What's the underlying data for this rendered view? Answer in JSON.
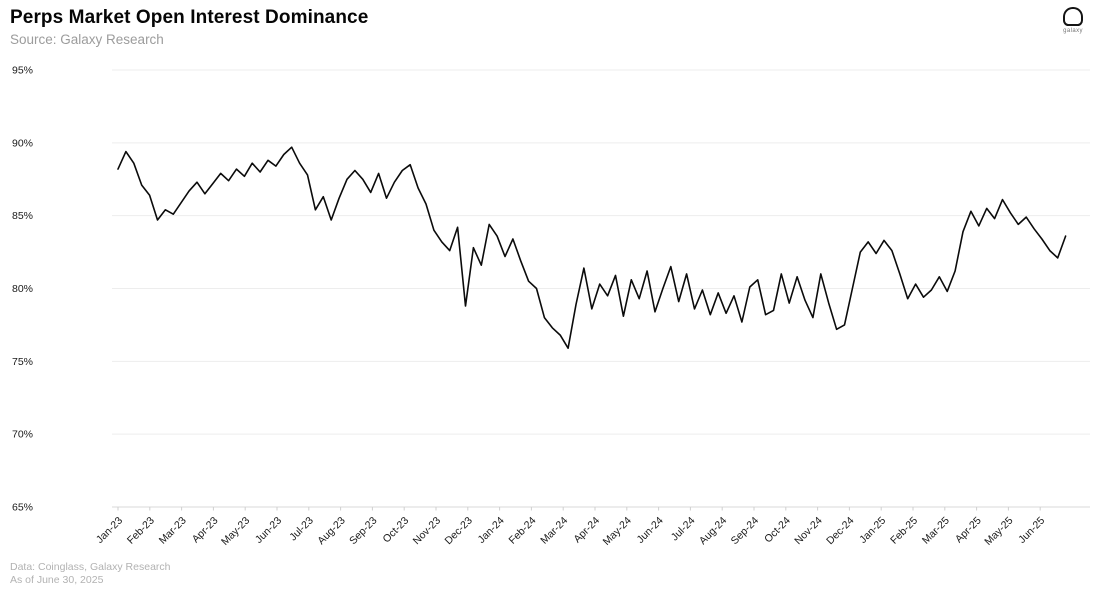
{
  "header": {
    "title": "Perps Market Open Interest Dominance",
    "source": "Source: Galaxy Research"
  },
  "logo": {
    "label": "galaxy"
  },
  "footer": {
    "line1": "Data: Coinglass, Galaxy Research",
    "line2": "As of June 30, 2025"
  },
  "chart_data": {
    "type": "line",
    "title": "Perps Market Open Interest Dominance",
    "xlabel": "",
    "ylabel": "",
    "ylim": [
      65,
      95
    ],
    "yticks": [
      95,
      90,
      85,
      80,
      75,
      70,
      65
    ],
    "ytick_suffix": "%",
    "grid": "horizontal-only",
    "legend_position": "none",
    "line_color": "#0b0b0b",
    "grid_color": "#ededed",
    "axis_color": "#d8d8d8",
    "tick_color": "#cfcfcf",
    "label_color": "#1a1a1a",
    "x_tick_labels": [
      "Jan-23",
      "Feb-23",
      "Mar-23",
      "Apr-23",
      "May-23",
      "Jun-23",
      "Jul-23",
      "Aug-23",
      "Sep-23",
      "Oct-23",
      "Nov-23",
      "Dec-23",
      "Jan-24",
      "Feb-24",
      "Mar-24",
      "Apr-24",
      "May-24",
      "Jun-24",
      "Jul-24",
      "Aug-24",
      "Sep-24",
      "Oct-24",
      "Nov-24",
      "Dec-24",
      "Jan-25",
      "Feb-25",
      "Mar-25",
      "Apr-25",
      "May-25",
      "Jun-25"
    ],
    "series": [
      {
        "name": "Perps Market Open Interest Dominance",
        "unit": "%",
        "x_start_month": "Jan-23",
        "x_end_label": "As of June 30, 2025",
        "values": [
          88.2,
          89.4,
          88.6,
          87.1,
          86.4,
          84.7,
          85.4,
          85.1,
          85.9,
          86.7,
          87.3,
          86.5,
          87.2,
          87.9,
          87.4,
          88.2,
          87.7,
          88.6,
          88.0,
          88.8,
          88.4,
          89.2,
          89.7,
          88.6,
          87.8,
          85.4,
          86.3,
          84.7,
          86.2,
          87.5,
          88.1,
          87.5,
          86.6,
          87.9,
          86.2,
          87.3,
          88.1,
          88.5,
          86.9,
          85.8,
          84.0,
          83.2,
          82.6,
          84.2,
          78.8,
          82.8,
          81.6,
          84.4,
          83.6,
          82.2,
          83.4,
          81.9,
          80.5,
          80.0,
          78.0,
          77.3,
          76.8,
          75.9,
          78.9,
          81.4,
          78.6,
          80.3,
          79.5,
          80.9,
          78.1,
          80.6,
          79.3,
          81.2,
          78.4,
          80.0,
          81.5,
          79.1,
          81.0,
          78.6,
          79.9,
          78.2,
          79.7,
          78.3,
          79.5,
          77.7,
          80.1,
          80.6,
          78.2,
          78.5,
          81.0,
          79.0,
          80.8,
          79.2,
          78.0,
          81.0,
          79.0,
          77.2,
          77.5,
          80.0,
          82.5,
          83.2,
          82.4,
          83.3,
          82.6,
          81.0,
          79.3,
          80.3,
          79.4,
          79.9,
          80.8,
          79.8,
          81.2,
          83.9,
          85.3,
          84.3,
          85.5,
          84.8,
          86.1,
          85.2,
          84.4,
          84.9,
          84.1,
          83.4,
          82.6,
          82.1,
          83.6
        ]
      }
    ]
  }
}
